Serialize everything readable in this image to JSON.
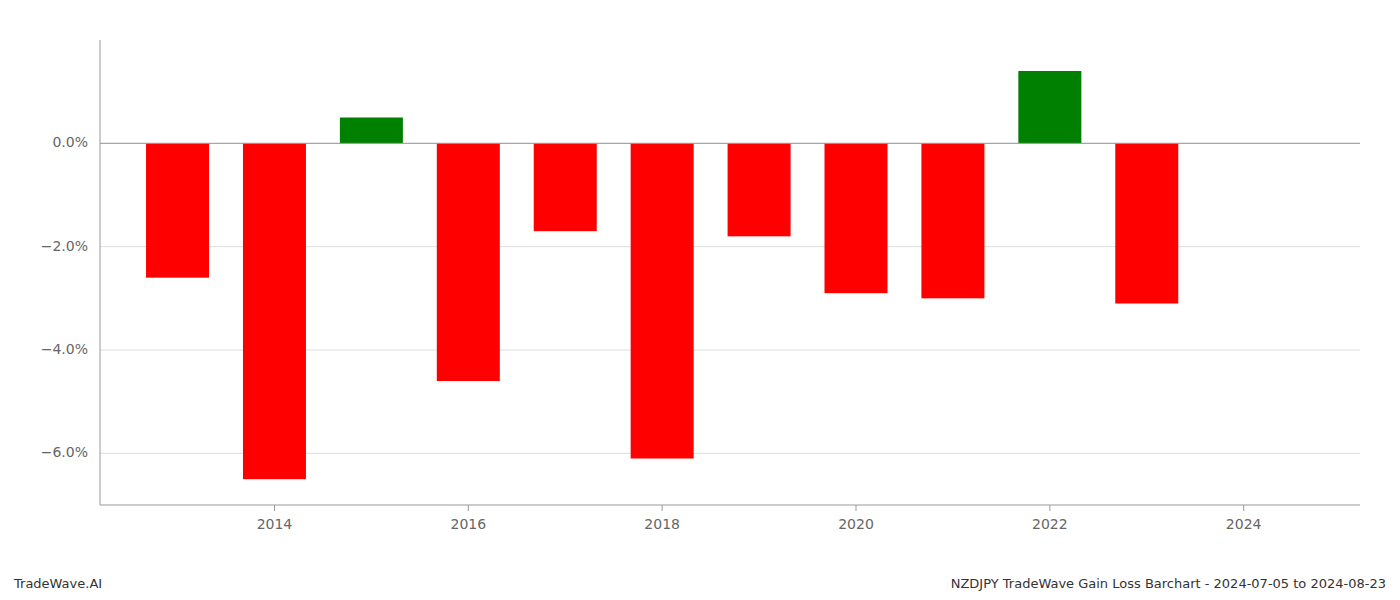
{
  "chart_data": {
    "type": "bar",
    "x": [
      2013,
      2014,
      2015,
      2016,
      2017,
      2018,
      2019,
      2020,
      2021,
      2022,
      2023
    ],
    "values": [
      -2.6,
      -6.5,
      0.5,
      -4.6,
      -1.7,
      -6.1,
      -1.8,
      -2.9,
      -3.0,
      1.4,
      -3.1
    ],
    "colors": [
      "#ff0000",
      "#ff0000",
      "#008000",
      "#ff0000",
      "#ff0000",
      "#ff0000",
      "#ff0000",
      "#ff0000",
      "#ff0000",
      "#008000",
      "#ff0000"
    ],
    "xlim": [
      2012.2,
      2025.2
    ],
    "xticks": [
      2014,
      2016,
      2018,
      2020,
      2022,
      2024
    ],
    "ylim": [
      -7.0,
      2.0
    ],
    "yticks": [
      {
        "value": 0.0,
        "label": "0.0%"
      },
      {
        "value": -2.0,
        "label": "−2.0%"
      },
      {
        "value": -4.0,
        "label": "−4.0%"
      },
      {
        "value": -6.0,
        "label": "−6.0%"
      }
    ],
    "grid": true,
    "annotations": [
      "TradeWave.AI",
      "NZDJPY TradeWave Gain Loss Barchart - 2024-07-05 to 2024-08-23"
    ]
  }
}
